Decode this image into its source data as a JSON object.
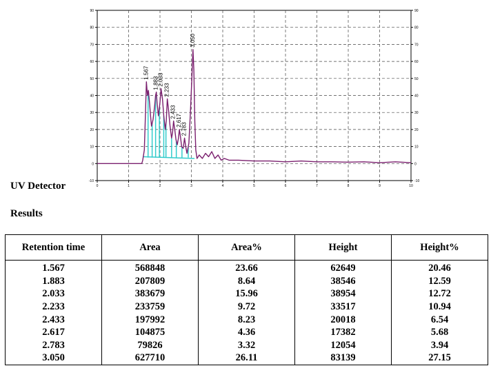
{
  "chart_data": {
    "type": "line",
    "title": "",
    "xlabel": "",
    "ylabel": "",
    "xlim": [
      0,
      10
    ],
    "ylim": [
      -10,
      90
    ],
    "x_ticks": [
      "0",
      "1",
      "2",
      "3",
      "4",
      "5",
      "6",
      "7",
      "8",
      "9",
      "10"
    ],
    "y_ticks": [
      "-10",
      "0",
      "10",
      "20",
      "30",
      "40",
      "50",
      "60",
      "70",
      "80",
      "90"
    ],
    "grid": true,
    "line_color": "#7a1f6e",
    "baseline_color": "#33cccc",
    "peak_labels": [
      "1.567",
      "1.883",
      "2.033",
      "2.233",
      "2.433",
      "2.617",
      "2.783",
      "3.050"
    ],
    "series": [
      {
        "x": [
          0,
          1,
          1.42,
          1.45,
          1.5,
          1.53,
          1.567,
          1.6,
          1.63,
          1.67,
          1.7,
          1.73,
          1.78,
          1.83,
          1.86,
          1.883,
          1.91,
          1.95,
          2.0,
          2.033,
          2.08,
          2.12,
          2.17,
          2.2,
          2.233,
          2.27,
          2.32,
          2.37,
          2.4,
          2.433,
          2.47,
          2.51,
          2.55,
          2.59,
          2.617,
          2.65,
          2.69,
          2.74,
          2.783,
          2.82,
          2.86,
          2.92,
          2.97,
          3.01,
          3.05,
          3.08,
          3.11,
          3.14,
          3.18,
          3.25,
          3.35,
          3.45,
          3.55,
          3.65,
          3.75,
          3.85,
          3.95,
          4.05,
          4.2,
          4.5,
          5,
          5.5,
          6,
          6.5,
          7,
          7.5,
          8,
          8.5,
          9,
          9.5,
          10
        ],
        "y": [
          0,
          0,
          0,
          2,
          8,
          25,
          48,
          40,
          43,
          35,
          28,
          22,
          26,
          34,
          40,
          42,
          35,
          28,
          36,
          44,
          38,
          28,
          20,
          25,
          38,
          32,
          22,
          15,
          18,
          25,
          20,
          14,
          11,
          15,
          20,
          16,
          10,
          9,
          15,
          10,
          6,
          12,
          30,
          48,
          67,
          55,
          25,
          8,
          3,
          5,
          3,
          6,
          4,
          7,
          3,
          5,
          2,
          3,
          2,
          2,
          1.5,
          1.5,
          1,
          1.5,
          1,
          1,
          0.8,
          1,
          0.5,
          1,
          0.5
        ]
      }
    ]
  },
  "labels": {
    "detector": "UV Detector",
    "results": "Results"
  },
  "table": {
    "headers": [
      "Retention time",
      "Area",
      "Area%",
      "Height",
      "Height%"
    ],
    "rows": [
      [
        "1.567",
        "568848",
        "23.66",
        "62649",
        "20.46"
      ],
      [
        "1.883",
        "207809",
        "8.64",
        "38546",
        "12.59"
      ],
      [
        "2.033",
        "383679",
        "15.96",
        "38954",
        "12.72"
      ],
      [
        "2.233",
        "233759",
        "9.72",
        "33517",
        "10.94"
      ],
      [
        "2.433",
        "197992",
        "8.23",
        "20018",
        "6.54"
      ],
      [
        "2.617",
        "104875",
        "4.36",
        "17382",
        "5.68"
      ],
      [
        "2.783",
        "79826",
        "3.32",
        "12054",
        "3.94"
      ],
      [
        "3.050",
        "627710",
        "26.11",
        "83139",
        "27.15"
      ]
    ]
  }
}
